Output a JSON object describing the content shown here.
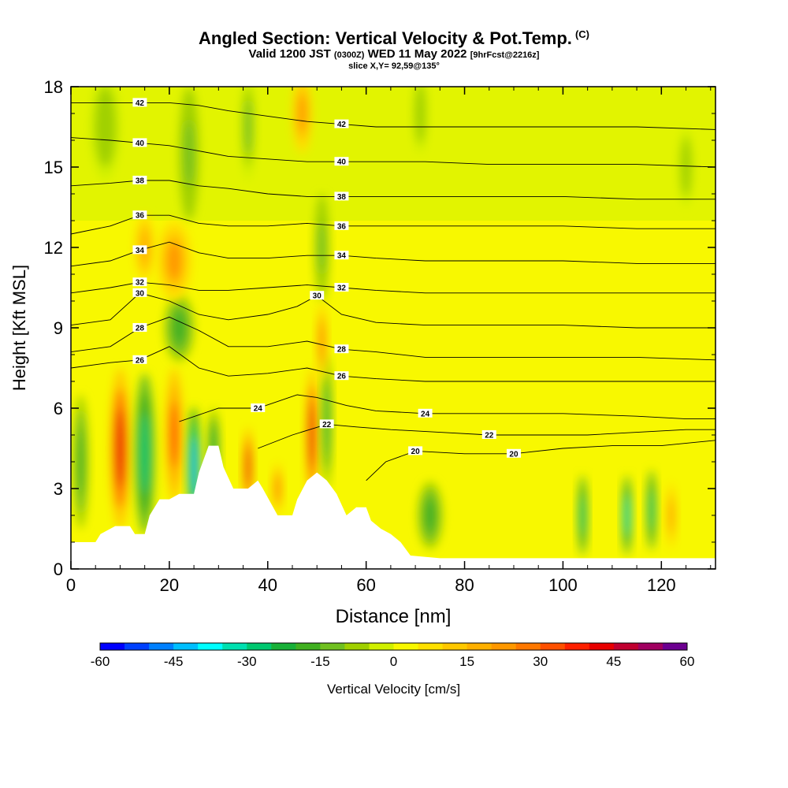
{
  "title": {
    "main": "Angled Section: Vertical Velocity & Pot.Temp.",
    "main_tag": "(C)",
    "valid_prefix": "Valid 1200 JST",
    "valid_zulu": "(0300Z)",
    "valid_date": "WED 11 May 2022",
    "valid_fcst": "[9hrFcst@2216z]",
    "slice": "slice X,Y= 92,59@135°"
  },
  "chart_data": {
    "type": "heatmap",
    "xlabel": "Distance [nm]",
    "ylabel": "Height [Kft MSL]",
    "xlim": [
      0,
      131
    ],
    "ylim": [
      0,
      18
    ],
    "x_ticks": [
      "0",
      "20",
      "40",
      "60",
      "80",
      "100",
      "120"
    ],
    "y_ticks": [
      "0",
      "3",
      "6",
      "9",
      "12",
      "15",
      "18"
    ],
    "colorbar": {
      "label": "Vertical Velocity [cm/s]",
      "range": [
        -60,
        60
      ],
      "step": 5,
      "tick_labels": [
        "-60",
        "-45",
        "-30",
        "-15",
        "0",
        "15",
        "30",
        "45",
        "60"
      ],
      "colors": [
        "#0000ff",
        "#0040ff",
        "#0080ff",
        "#00bfff",
        "#00ffff",
        "#00e0b0",
        "#00c870",
        "#18b038",
        "#40b020",
        "#70c020",
        "#a0d000",
        "#d0f000",
        "#f8f800",
        "#ffe000",
        "#ffc800",
        "#ffb000",
        "#ff9800",
        "#ff7800",
        "#ff5000",
        "#ff2000",
        "#e80000",
        "#c00030",
        "#a00060",
        "#6c0090"
      ]
    },
    "contours": {
      "field": "Potential Temperature (C)",
      "levels": [
        20,
        22,
        24,
        26,
        28,
        30,
        32,
        34,
        36,
        38,
        40,
        42
      ],
      "lines": [
        {
          "label": "20",
          "points": [
            [
              60,
              3.3
            ],
            [
              64,
              4.0
            ],
            [
              70,
              4.4
            ],
            [
              80,
              4.3
            ],
            [
              90,
              4.3
            ],
            [
              100,
              4.5
            ],
            [
              110,
              4.6
            ],
            [
              120,
              4.6
            ],
            [
              131,
              4.8
            ]
          ]
        },
        {
          "label": "22",
          "points": [
            [
              38,
              4.5
            ],
            [
              45,
              5.0
            ],
            [
              52,
              5.4
            ],
            [
              58,
              5.3
            ],
            [
              65,
              5.2
            ],
            [
              75,
              5.1
            ],
            [
              85,
              5.0
            ],
            [
              95,
              5.0
            ],
            [
              105,
              5.0
            ],
            [
              115,
              5.1
            ],
            [
              125,
              5.2
            ],
            [
              131,
              5.2
            ]
          ]
        },
        {
          "label": "24",
          "points": [
            [
              22,
              5.5
            ],
            [
              30,
              6.0
            ],
            [
              38,
              6.0
            ],
            [
              46,
              6.5
            ],
            [
              50,
              6.4
            ],
            [
              56,
              6.1
            ],
            [
              62,
              5.9
            ],
            [
              72,
              5.8
            ],
            [
              85,
              5.8
            ],
            [
              100,
              5.8
            ],
            [
              115,
              5.7
            ],
            [
              125,
              5.6
            ],
            [
              131,
              5.6
            ]
          ]
        },
        {
          "label": "26",
          "points": [
            [
              0,
              7.5
            ],
            [
              8,
              7.7
            ],
            [
              14,
              7.8
            ],
            [
              20,
              8.3
            ],
            [
              26,
              7.5
            ],
            [
              32,
              7.2
            ],
            [
              40,
              7.3
            ],
            [
              48,
              7.5
            ],
            [
              55,
              7.2
            ],
            [
              62,
              7.1
            ],
            [
              72,
              7.0
            ],
            [
              85,
              7.0
            ],
            [
              100,
              7.0
            ],
            [
              115,
              7.0
            ],
            [
              131,
              7.0
            ]
          ]
        },
        {
          "label": "28",
          "points": [
            [
              0,
              8.1
            ],
            [
              8,
              8.3
            ],
            [
              14,
              9.0
            ],
            [
              20,
              9.4
            ],
            [
              26,
              8.9
            ],
            [
              32,
              8.3
            ],
            [
              40,
              8.3
            ],
            [
              48,
              8.5
            ],
            [
              55,
              8.2
            ],
            [
              62,
              8.1
            ],
            [
              72,
              7.9
            ],
            [
              85,
              7.9
            ],
            [
              100,
              7.9
            ],
            [
              115,
              7.9
            ],
            [
              131,
              7.8
            ]
          ]
        },
        {
          "label": "30",
          "points": [
            [
              0,
              9.1
            ],
            [
              8,
              9.3
            ],
            [
              14,
              10.3
            ],
            [
              20,
              10.0
            ],
            [
              26,
              9.5
            ],
            [
              32,
              9.3
            ],
            [
              40,
              9.5
            ],
            [
              46,
              9.8
            ],
            [
              50,
              10.2
            ],
            [
              55,
              9.5
            ],
            [
              62,
              9.2
            ],
            [
              72,
              9.1
            ],
            [
              85,
              9.1
            ],
            [
              100,
              9.1
            ],
            [
              115,
              9.0
            ],
            [
              131,
              9.0
            ]
          ]
        },
        {
          "label": "32",
          "points": [
            [
              0,
              10.3
            ],
            [
              8,
              10.5
            ],
            [
              14,
              10.7
            ],
            [
              20,
              10.6
            ],
            [
              26,
              10.4
            ],
            [
              32,
              10.4
            ],
            [
              40,
              10.5
            ],
            [
              48,
              10.6
            ],
            [
              55,
              10.5
            ],
            [
              62,
              10.4
            ],
            [
              72,
              10.3
            ],
            [
              85,
              10.3
            ],
            [
              100,
              10.3
            ],
            [
              115,
              10.3
            ],
            [
              131,
              10.3
            ]
          ]
        },
        {
          "label": "34",
          "points": [
            [
              0,
              11.3
            ],
            [
              8,
              11.5
            ],
            [
              14,
              11.9
            ],
            [
              20,
              12.2
            ],
            [
              26,
              11.8
            ],
            [
              32,
              11.6
            ],
            [
              40,
              11.6
            ],
            [
              48,
              11.7
            ],
            [
              55,
              11.7
            ],
            [
              62,
              11.6
            ],
            [
              72,
              11.5
            ],
            [
              85,
              11.5
            ],
            [
              100,
              11.5
            ],
            [
              115,
              11.4
            ],
            [
              131,
              11.4
            ]
          ]
        },
        {
          "label": "36",
          "points": [
            [
              0,
              12.5
            ],
            [
              8,
              12.8
            ],
            [
              14,
              13.2
            ],
            [
              20,
              13.2
            ],
            [
              26,
              12.9
            ],
            [
              32,
              12.8
            ],
            [
              40,
              12.8
            ],
            [
              48,
              12.9
            ],
            [
              55,
              12.8
            ],
            [
              62,
              12.8
            ],
            [
              72,
              12.8
            ],
            [
              85,
              12.8
            ],
            [
              100,
              12.8
            ],
            [
              115,
              12.7
            ],
            [
              131,
              12.7
            ]
          ]
        },
        {
          "label": "38",
          "points": [
            [
              0,
              14.3
            ],
            [
              8,
              14.4
            ],
            [
              14,
              14.5
            ],
            [
              20,
              14.5
            ],
            [
              26,
              14.3
            ],
            [
              32,
              14.2
            ],
            [
              40,
              14.0
            ],
            [
              48,
              13.9
            ],
            [
              55,
              13.9
            ],
            [
              62,
              13.9
            ],
            [
              72,
              13.9
            ],
            [
              85,
              13.9
            ],
            [
              100,
              13.9
            ],
            [
              115,
              13.8
            ],
            [
              131,
              13.8
            ]
          ]
        },
        {
          "label": "40",
          "points": [
            [
              0,
              16.1
            ],
            [
              8,
              16.0
            ],
            [
              14,
              15.9
            ],
            [
              20,
              15.8
            ],
            [
              26,
              15.6
            ],
            [
              32,
              15.4
            ],
            [
              40,
              15.3
            ],
            [
              48,
              15.2
            ],
            [
              55,
              15.2
            ],
            [
              62,
              15.2
            ],
            [
              72,
              15.2
            ],
            [
              85,
              15.1
            ],
            [
              100,
              15.1
            ],
            [
              115,
              15.1
            ],
            [
              131,
              15.0
            ]
          ]
        },
        {
          "label": "42",
          "points": [
            [
              0,
              17.4
            ],
            [
              8,
              17.4
            ],
            [
              14,
              17.4
            ],
            [
              20,
              17.4
            ],
            [
              26,
              17.3
            ],
            [
              32,
              17.1
            ],
            [
              40,
              16.9
            ],
            [
              48,
              16.7
            ],
            [
              55,
              16.6
            ],
            [
              62,
              16.5
            ],
            [
              72,
              16.5
            ],
            [
              85,
              16.5
            ],
            [
              100,
              16.5
            ],
            [
              115,
              16.5
            ],
            [
              131,
              16.4
            ]
          ]
        }
      ]
    },
    "velocity_cells": [
      {
        "x": 10,
        "y": 4.5,
        "w": 4,
        "h": 6,
        "v": 40
      },
      {
        "x": 15,
        "y": 4.3,
        "w": 4,
        "h": 6,
        "v": -30
      },
      {
        "x": 21,
        "y": 5.0,
        "w": 3.5,
        "h": 5,
        "v": 30
      },
      {
        "x": 25,
        "y": 3.8,
        "w": 2.5,
        "h": 4.5,
        "v": -45
      },
      {
        "x": 29,
        "y": 4.5,
        "w": 2.5,
        "h": 3,
        "v": -25
      },
      {
        "x": 36,
        "y": 3.8,
        "w": 2,
        "h": 3,
        "v": 40
      },
      {
        "x": 42,
        "y": 3.0,
        "w": 2,
        "h": 2,
        "v": 25
      },
      {
        "x": 49,
        "y": 5.0,
        "w": 2.5,
        "h": 5,
        "v": 40
      },
      {
        "x": 52,
        "y": 5.5,
        "w": 2,
        "h": 5,
        "v": -25
      },
      {
        "x": 22,
        "y": 9.0,
        "w": 6,
        "h": 2.5,
        "v": -20
      },
      {
        "x": 21,
        "y": 11.5,
        "w": 7,
        "h": 3,
        "v": 20
      },
      {
        "x": 15,
        "y": 12.0,
        "w": 4,
        "h": 2.5,
        "v": 18
      },
      {
        "x": 24,
        "y": 15.5,
        "w": 4,
        "h": 5,
        "v": -15
      },
      {
        "x": 36,
        "y": 16.5,
        "w": 3,
        "h": 4,
        "v": -12
      },
      {
        "x": 47,
        "y": 17.0,
        "w": 4,
        "h": 3,
        "v": 20
      },
      {
        "x": 51,
        "y": 12.0,
        "w": 3,
        "h": 4,
        "v": -15
      },
      {
        "x": 51,
        "y": 8.5,
        "w": 2,
        "h": 3,
        "v": 25
      },
      {
        "x": 73,
        "y": 2.0,
        "w": 5,
        "h": 2.5,
        "v": -18
      },
      {
        "x": 104,
        "y": 2.0,
        "w": 2,
        "h": 3,
        "v": -30
      },
      {
        "x": 113,
        "y": 2.0,
        "w": 2,
        "h": 3,
        "v": -35
      },
      {
        "x": 118,
        "y": 2.2,
        "w": 2,
        "h": 3,
        "v": -30
      },
      {
        "x": 122,
        "y": 2.0,
        "w": 2,
        "h": 2.5,
        "v": 20
      },
      {
        "x": 2,
        "y": 4.0,
        "w": 3,
        "h": 5,
        "v": -20
      },
      {
        "x": 7,
        "y": 16.5,
        "w": 6,
        "h": 4,
        "v": -10
      },
      {
        "x": 71,
        "y": 17.0,
        "w": 3,
        "h": 3,
        "v": -10
      },
      {
        "x": 125,
        "y": 15.0,
        "w": 3,
        "h": 3,
        "v": -8
      }
    ],
    "terrain": [
      [
        0,
        1.0
      ],
      [
        5,
        1.0
      ],
      [
        6,
        1.3
      ],
      [
        9,
        1.6
      ],
      [
        12,
        1.6
      ],
      [
        13,
        1.3
      ],
      [
        15,
        1.3
      ],
      [
        16,
        2.0
      ],
      [
        18,
        2.6
      ],
      [
        20,
        2.6
      ],
      [
        22,
        2.8
      ],
      [
        25,
        2.8
      ],
      [
        26,
        3.6
      ],
      [
        28,
        4.6
      ],
      [
        30,
        4.6
      ],
      [
        31,
        3.8
      ],
      [
        33,
        3.0
      ],
      [
        36,
        3.0
      ],
      [
        38,
        3.3
      ],
      [
        39,
        3.0
      ],
      [
        42,
        2.0
      ],
      [
        45,
        2.0
      ],
      [
        46,
        2.6
      ],
      [
        48,
        3.3
      ],
      [
        50,
        3.6
      ],
      [
        52,
        3.3
      ],
      [
        54,
        2.8
      ],
      [
        56,
        2.0
      ],
      [
        58,
        2.3
      ],
      [
        60,
        2.3
      ],
      [
        61,
        1.8
      ],
      [
        63,
        1.5
      ],
      [
        65,
        1.3
      ],
      [
        67,
        1.0
      ],
      [
        69,
        0.5
      ],
      [
        75,
        0.4
      ],
      [
        131,
        0.4
      ]
    ]
  }
}
